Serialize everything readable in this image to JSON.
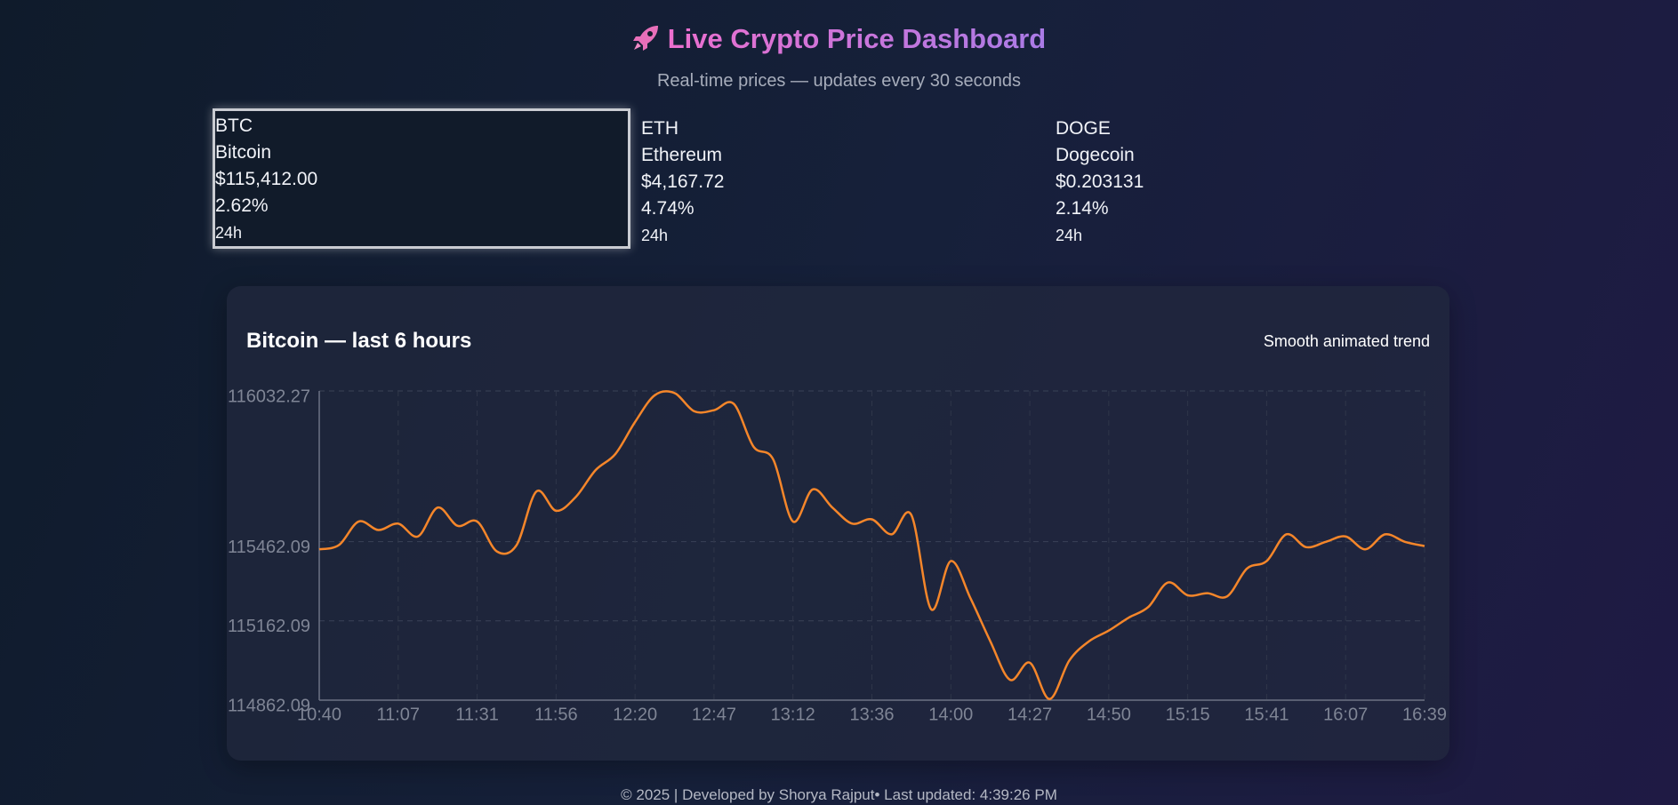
{
  "header": {
    "title": "Live Crypto Price Dashboard",
    "subtitle": "Real-time prices — updates every 30 seconds"
  },
  "coins": [
    {
      "symbol": "BTC",
      "name": "Bitcoin",
      "price": "$115,412.00",
      "change": "2.62%",
      "period": "24h"
    },
    {
      "symbol": "ETH",
      "name": "Ethereum",
      "price": "$4,167.72",
      "change": "4.74%",
      "period": "24h"
    },
    {
      "symbol": "DOGE",
      "name": "Dogecoin",
      "price": "$0.203131",
      "change": "2.14%",
      "period": "24h"
    }
  ],
  "chart_data": {
    "type": "line",
    "title": "Bitcoin — last 6 hours",
    "annotation": "Smooth animated trend",
    "color": "#f5862a",
    "grid": true,
    "values": [
      115433.0,
      115449.2,
      115538.3,
      115505.9,
      115530.2,
      115481.6,
      115590.9,
      115522.1,
      115538.3,
      115424.9,
      115449.2,
      115651.7,
      115578.8,
      115631.4,
      115732.6,
      115793.4,
      115914.8,
      116016.1,
      116024.2,
      115955.3,
      115959.4,
      115983.7,
      115821.7,
      115773.1,
      115538.3,
      115659.8,
      115590.9,
      115530.2,
      115546.4,
      115489.7,
      115562.6,
      115206.3,
      115388.5,
      115246.8,
      115084.8,
      114939.0,
      115003.8,
      114866.1,
      115011.9,
      115084.8,
      115125.3,
      115173.9,
      115214.4,
      115307.5,
      115258.9,
      115267.0,
      115254.9,
      115360.1,
      115388.5,
      115489.7,
      115441.1,
      115461.4,
      115481.6,
      115433.0,
      115489.7,
      115461.4,
      115445.2
    ],
    "xlim": [
      0,
      56
    ],
    "xticks": [
      {
        "value": 0,
        "label": "10:40"
      },
      {
        "value": 4,
        "label": "11:07"
      },
      {
        "value": 8,
        "label": "11:31"
      },
      {
        "value": 12,
        "label": "11:56"
      },
      {
        "value": 16,
        "label": "12:20"
      },
      {
        "value": 20,
        "label": "12:47"
      },
      {
        "value": 24,
        "label": "13:12"
      },
      {
        "value": 28,
        "label": "13:36"
      },
      {
        "value": 32,
        "label": "14:00"
      },
      {
        "value": 36,
        "label": "14:27"
      },
      {
        "value": 40,
        "label": "14:50"
      },
      {
        "value": 44,
        "label": "15:15"
      },
      {
        "value": 48,
        "label": "15:41"
      },
      {
        "value": 52,
        "label": "16:07"
      },
      {
        "value": 56,
        "label": "16:39"
      }
    ],
    "ylim": [
      114862.09,
      116032.27
    ],
    "yticks": [
      114862.09,
      115162.09,
      115462.09,
      116032.27
    ]
  },
  "footer": "© 2025 | Developed by Shorya Rajput• Last updated: 4:39:26 PM"
}
